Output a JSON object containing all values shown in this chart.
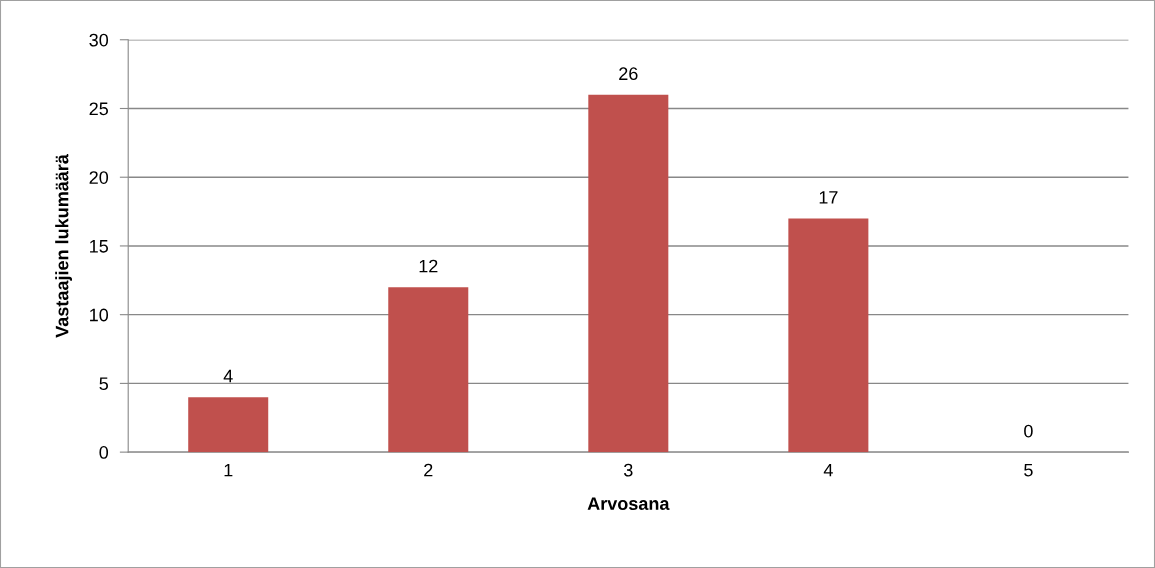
{
  "chart_data": {
    "type": "bar",
    "xlabel": "Arvosana",
    "ylabel": "Vastaajien lukumäärä",
    "categories": [
      "1",
      "2",
      "3",
      "4",
      "5"
    ],
    "values": [
      4,
      12,
      26,
      17,
      0
    ],
    "color": "#c0504d",
    "ylim": [
      0,
      30
    ],
    "yticks": [
      0,
      5,
      10,
      15,
      20,
      25,
      30
    ],
    "grid": "y",
    "legend": false,
    "data_labels": true
  }
}
